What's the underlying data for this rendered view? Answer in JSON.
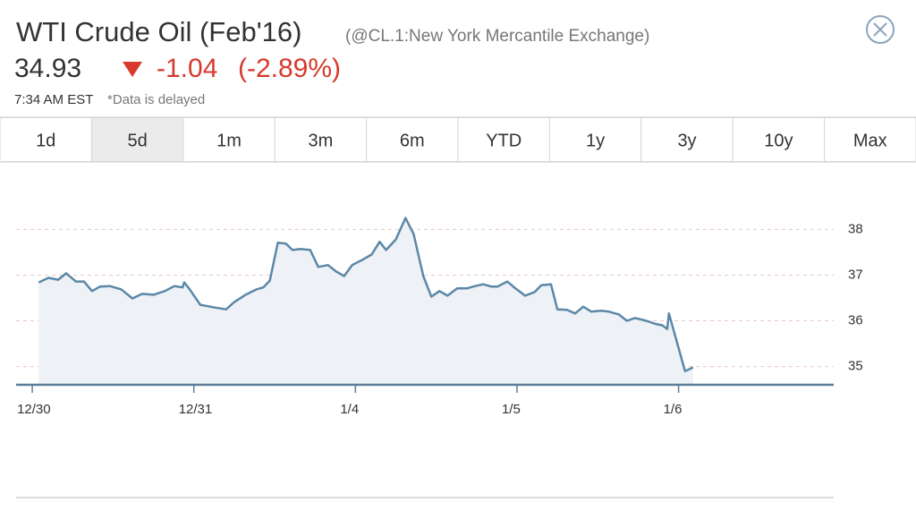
{
  "header": {
    "title": "WTI Crude Oil (Feb'16)",
    "exchange": "(@CL.1:New York Mercantile Exchange)",
    "price": "34.93",
    "change": "-1.04",
    "change_pct": "(-2.89%)",
    "time": "7:34 AM EST",
    "delay_note": "*Data is delayed"
  },
  "tabs": {
    "labels": [
      "1d",
      "5d",
      "1m",
      "3m",
      "6m",
      "YTD",
      "1y",
      "3y",
      "10y",
      "Max"
    ],
    "selected": 1
  },
  "chart_data": {
    "type": "area",
    "color": "#5b88a8",
    "fill": "#eef1f5",
    "x": [
      0.04,
      0.1,
      0.16,
      0.21,
      0.27,
      0.32,
      0.37,
      0.42,
      0.48,
      0.55,
      0.62,
      0.68,
      0.75,
      0.82,
      0.88,
      0.93,
      0.94,
      0.97,
      1.04,
      1.13,
      1.2,
      1.25,
      1.32,
      1.39,
      1.43,
      1.47,
      1.52,
      1.57,
      1.61,
      1.66,
      1.72,
      1.77,
      1.83,
      1.88,
      1.93,
      1.98,
      2.04,
      2.1,
      2.15,
      2.19,
      2.25,
      2.31,
      2.36,
      2.42,
      2.47,
      2.52,
      2.57,
      2.63,
      2.69,
      2.73,
      2.79,
      2.84,
      2.88,
      2.94,
      2.99,
      3.05,
      3.11,
      3.15,
      3.21,
      3.25,
      3.31,
      3.36,
      3.41,
      3.46,
      3.52,
      3.57,
      3.63,
      3.68,
      3.73,
      3.8,
      3.85,
      3.9,
      3.93,
      3.94,
      4.04,
      4.09
    ],
    "values": [
      36.84,
      36.94,
      36.9,
      37.04,
      36.86,
      36.86,
      36.65,
      36.75,
      36.76,
      36.69,
      36.49,
      36.59,
      36.57,
      36.65,
      36.76,
      36.73,
      36.84,
      36.71,
      36.35,
      36.29,
      36.25,
      36.41,
      36.57,
      36.69,
      36.73,
      36.88,
      37.71,
      37.69,
      37.55,
      37.57,
      37.55,
      37.18,
      37.22,
      37.08,
      36.98,
      37.22,
      37.33,
      37.45,
      37.73,
      37.55,
      37.78,
      38.25,
      37.9,
      36.98,
      36.53,
      36.65,
      36.55,
      36.71,
      36.71,
      36.75,
      36.8,
      36.75,
      36.75,
      36.86,
      36.71,
      36.55,
      36.63,
      36.78,
      36.8,
      36.25,
      36.24,
      36.16,
      36.31,
      36.2,
      36.22,
      36.2,
      36.14,
      36.0,
      36.06,
      36.0,
      35.94,
      35.9,
      35.82,
      36.16,
      34.9,
      34.98
    ],
    "xlim": [
      -0.1,
      4.96
    ],
    "xticks": [
      {
        "value": 0,
        "label": "12/30"
      },
      {
        "value": 1,
        "label": "12/31"
      },
      {
        "value": 2,
        "label": "1/4"
      },
      {
        "value": 3,
        "label": "1/5"
      },
      {
        "value": 4,
        "label": "1/6"
      }
    ],
    "ylim": [
      34.6,
      39.3
    ],
    "yticks": [
      35,
      36,
      37,
      38
    ],
    "grid": true
  }
}
